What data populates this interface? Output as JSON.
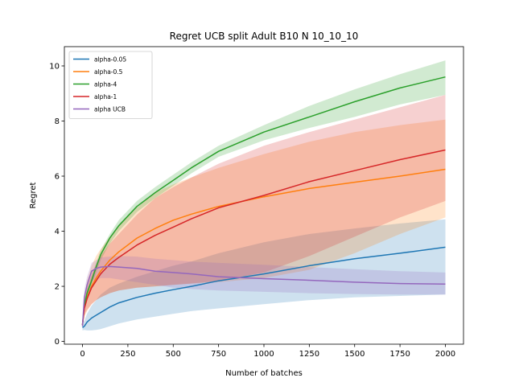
{
  "chart_data": {
    "type": "line",
    "title": "Regret UCB split Adult B10 N 10_10_10",
    "xlabel": "Number of batches",
    "ylabel": "Regret",
    "xlim": [
      -100,
      2100
    ],
    "ylim": [
      -0.1,
      10.7
    ],
    "xticks": [
      0,
      250,
      500,
      750,
      1000,
      1250,
      1500,
      1750,
      2000
    ],
    "yticks": [
      0,
      2,
      4,
      6,
      8,
      10
    ],
    "xtick_labels": [
      "0",
      "250",
      "500",
      "750",
      "1000",
      "1250",
      "1500",
      "1750",
      "2000"
    ],
    "ytick_labels": [
      "0",
      "2",
      "4",
      "6",
      "8",
      "10"
    ],
    "legend_position": "top-left",
    "grid": false,
    "x": [
      0,
      10,
      25,
      50,
      75,
      100,
      150,
      200,
      300,
      400,
      500,
      600,
      750,
      1000,
      1250,
      1500,
      1750,
      2000
    ],
    "series": [
      {
        "name": "alpha-0.05",
        "color": "#1f77b4",
        "values": [
          0.5,
          0.55,
          0.7,
          0.85,
          0.95,
          1.05,
          1.25,
          1.4,
          1.6,
          1.75,
          1.88,
          2.0,
          2.2,
          2.45,
          2.75,
          3.0,
          3.2,
          3.42
        ],
        "lower": [
          0.4,
          0.42,
          0.4,
          0.4,
          0.42,
          0.45,
          0.55,
          0.65,
          0.8,
          0.9,
          1.0,
          1.1,
          1.2,
          1.35,
          1.5,
          1.6,
          1.65,
          1.7
        ],
        "upper": [
          0.65,
          0.75,
          1.0,
          1.3,
          1.5,
          1.7,
          1.95,
          2.1,
          2.35,
          2.55,
          2.75,
          2.9,
          3.2,
          3.6,
          3.9,
          4.1,
          4.28,
          4.43
        ]
      },
      {
        "name": "alpha-0.5",
        "color": "#ff7f0e",
        "values": [
          0.6,
          1.2,
          1.6,
          2.0,
          2.3,
          2.55,
          2.95,
          3.25,
          3.75,
          4.1,
          4.4,
          4.62,
          4.9,
          5.25,
          5.55,
          5.78,
          6.0,
          6.25
        ],
        "lower": [
          0.5,
          0.9,
          1.1,
          1.35,
          1.5,
          1.6,
          1.75,
          1.85,
          1.95,
          2.0,
          2.05,
          2.1,
          2.15,
          2.3,
          2.6,
          3.2,
          3.9,
          4.5
        ],
        "upper": [
          0.7,
          1.6,
          2.2,
          2.75,
          3.1,
          3.35,
          3.8,
          4.2,
          4.85,
          5.4,
          5.7,
          5.95,
          6.3,
          6.8,
          7.25,
          7.6,
          7.85,
          8.05
        ]
      },
      {
        "name": "alpha-4",
        "color": "#2ca02c",
        "values": [
          0.6,
          1.3,
          1.75,
          2.2,
          2.7,
          3.15,
          3.75,
          4.2,
          4.9,
          5.4,
          5.85,
          6.3,
          6.9,
          7.6,
          8.15,
          8.7,
          9.2,
          9.6
        ],
        "lower": [
          0.5,
          1.15,
          1.6,
          2.05,
          2.5,
          2.95,
          3.55,
          4.0,
          4.7,
          5.2,
          5.65,
          6.1,
          6.7,
          7.3,
          7.75,
          8.15,
          8.6,
          8.95
        ],
        "upper": [
          0.7,
          1.45,
          1.9,
          2.35,
          2.85,
          3.3,
          3.9,
          4.4,
          5.1,
          5.6,
          6.05,
          6.5,
          7.1,
          7.85,
          8.55,
          9.15,
          9.7,
          10.2
        ]
      },
      {
        "name": "alpha-1",
        "color": "#d62728",
        "values": [
          0.6,
          1.2,
          1.55,
          1.95,
          2.2,
          2.45,
          2.8,
          3.05,
          3.5,
          3.85,
          4.15,
          4.45,
          4.85,
          5.3,
          5.8,
          6.2,
          6.6,
          6.95
        ],
        "lower": [
          0.5,
          0.95,
          1.15,
          1.35,
          1.5,
          1.6,
          1.75,
          1.85,
          1.95,
          2.0,
          2.05,
          2.1,
          2.2,
          2.5,
          3.1,
          3.8,
          4.5,
          5.1
        ],
        "upper": [
          0.7,
          1.45,
          1.95,
          2.45,
          2.8,
          3.1,
          3.55,
          3.9,
          4.6,
          5.2,
          5.6,
          5.95,
          6.45,
          7.1,
          7.6,
          8.05,
          8.5,
          8.95
        ]
      },
      {
        "name": "alpha UCB",
        "color": "#9467bd",
        "values": [
          0.55,
          1.6,
          2.05,
          2.55,
          2.65,
          2.7,
          2.72,
          2.7,
          2.65,
          2.55,
          2.5,
          2.45,
          2.35,
          2.28,
          2.22,
          2.15,
          2.1,
          2.08
        ],
        "lower": [
          0.45,
          1.3,
          1.75,
          2.2,
          2.25,
          2.3,
          2.3,
          2.25,
          2.15,
          2.05,
          1.95,
          1.9,
          1.85,
          1.8,
          1.75,
          1.72,
          1.7,
          1.7
        ],
        "upper": [
          0.65,
          1.9,
          2.35,
          2.85,
          2.95,
          3.05,
          3.08,
          3.1,
          3.08,
          3.0,
          2.95,
          2.9,
          2.85,
          2.78,
          2.7,
          2.62,
          2.55,
          2.5
        ]
      }
    ]
  }
}
